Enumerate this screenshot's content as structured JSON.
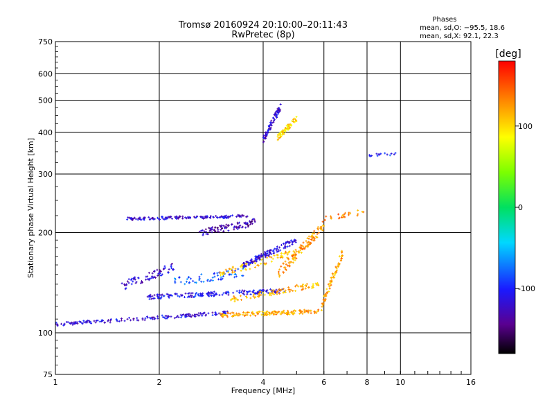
{
  "chart_data": {
    "type": "scatter",
    "title": "Tromsø 20160924 20:10:00–20:11:43",
    "subtitle": "RwPretec (8p)",
    "xlabel": "Frequency [MHz]",
    "ylabel": "Stationary phase Virtual Height [km]",
    "x_scale": "log",
    "y_scale": "log",
    "xlim": [
      1,
      16
    ],
    "ylim": [
      75,
      750
    ],
    "x_ticks": [
      1,
      2,
      4,
      6,
      8,
      10,
      16
    ],
    "y_ticks": [
      75,
      100,
      200,
      300,
      400,
      500,
      600,
      750
    ],
    "grid": true,
    "phase_box": {
      "heading": "Phases",
      "line_o": "mean, sd,O: −95.5, 18.6",
      "line_x": "mean, sd,X:  92.1, 22.3"
    },
    "colorbar": {
      "label": "[deg]",
      "ticks": [
        100,
        0,
        -100
      ],
      "range": [
        -180,
        180
      ],
      "colormap": "rainbow"
    },
    "traces": [
      {
        "x_range": [
          1.0,
          3.2
        ],
        "h_range": [
          106,
          115
        ],
        "phase": -115,
        "n": 160,
        "spread": 0.012
      },
      {
        "x_range": [
          3.0,
          5.8
        ],
        "h_range": [
          113,
          116
        ],
        "phase": 120,
        "n": 150,
        "spread": 0.014
      },
      {
        "x_range": [
          1.85,
          4.6
        ],
        "h_range": [
          128,
          134
        ],
        "phase": -110,
        "n": 170,
        "spread": 0.015
      },
      {
        "x_range": [
          3.2,
          5.8
        ],
        "h_range": [
          126,
          140
        ],
        "phase": 115,
        "n": 90,
        "spread": 0.02
      },
      {
        "x_range": [
          1.55,
          2.2
        ],
        "h_range": [
          138,
          158
        ],
        "phase": -118,
        "n": 70,
        "spread": 0.03
      },
      {
        "x_range": [
          2.2,
          3.5
        ],
        "h_range": [
          142,
          152
        ],
        "phase": -80,
        "n": 60,
        "spread": 0.03
      },
      {
        "x_range": [
          3.0,
          5.0
        ],
        "h_range": [
          150,
          175
        ],
        "phase": 110,
        "n": 80,
        "spread": 0.025
      },
      {
        "x_range": [
          3.5,
          5.0
        ],
        "h_range": [
          160,
          190
        ],
        "phase": -115,
        "n": 120,
        "spread": 0.02
      },
      {
        "x_range": [
          1.6,
          3.6
        ],
        "h_range": [
          220,
          224
        ],
        "phase": -118,
        "n": 150,
        "spread": 0.01
      },
      {
        "x_range": [
          2.6,
          3.8
        ],
        "h_range": [
          200,
          215
        ],
        "phase": -130,
        "n": 90,
        "spread": 0.025
      },
      {
        "x_range": [
          4.4,
          6.0
        ],
        "h_range": [
          150,
          210
        ],
        "phase": 125,
        "n": 110,
        "spread": 0.035
      },
      {
        "x_range": [
          4.0,
          4.5
        ],
        "h_range": [
          380,
          480
        ],
        "phase": -118,
        "n": 80,
        "spread": 0.025
      },
      {
        "x_range": [
          4.4,
          5.0
        ],
        "h_range": [
          385,
          440
        ],
        "phase": 100,
        "n": 60,
        "spread": 0.02
      },
      {
        "x_range": [
          5.9,
          6.8
        ],
        "h_range": [
          120,
          175
        ],
        "phase": 120,
        "n": 70,
        "spread": 0.03
      },
      {
        "x_range": [
          6.0,
          8.0
        ],
        "h_range": [
          220,
          232
        ],
        "phase": 130,
        "n": 25,
        "spread": 0.02
      },
      {
        "x_range": [
          7.8,
          9.8
        ],
        "h_range": [
          340,
          345
        ],
        "phase": -100,
        "n": 15,
        "spread": 0.01
      }
    ]
  }
}
